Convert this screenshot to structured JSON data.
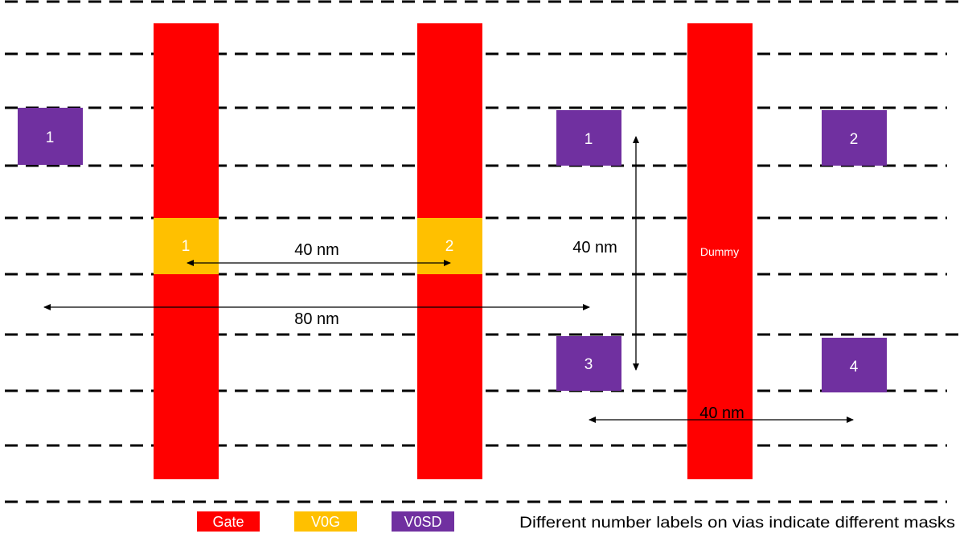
{
  "colors": {
    "gate": "#ff0000",
    "v0g": "#ffc000",
    "v0sd": "#7030a0",
    "track_line": "#000000",
    "background": "#ffffff"
  },
  "gates": {
    "dummy_label": "Dummy"
  },
  "v0g_vias": [
    "1",
    "2"
  ],
  "v0sd_vias": [
    "1",
    "1",
    "2",
    "3",
    "4"
  ],
  "dimensions": {
    "gate_pitch": "40 nm",
    "vertical_spacing": "40 nm",
    "long_span": "80 nm",
    "lower_spacing": "40 nm"
  },
  "legend": {
    "gate": "Gate",
    "v0g": "V0G",
    "v0sd": "V0SD",
    "note": "Different number labels on vias indicate different masks"
  }
}
